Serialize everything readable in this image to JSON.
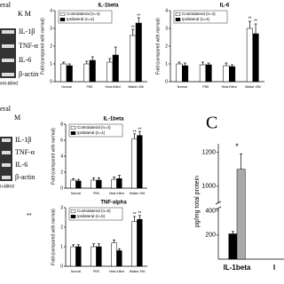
{
  "gels": [
    {
      "header": "eral",
      "lanes": "K M",
      "labels": [
        "IL-1β",
        "TNF-α",
        "IL-6",
        "β-actin"
      ],
      "footer": "ent-killed"
    },
    {
      "header": "eral",
      "lanes": "M",
      "labels": [
        "IL-1β",
        "TNF-α",
        "IL-6",
        "β-actin"
      ],
      "footer": "n-killed",
      "fragment": "**"
    }
  ],
  "chart_data": [
    {
      "type": "bar",
      "title": "IL-1beta",
      "y_label": "Fold (compared with normal)",
      "categories": [
        "Normal",
        "PBS",
        "Heat-Killed",
        "Walker 256"
      ],
      "series": [
        {
          "name": "Contralateral (n=4)",
          "color": "#ffffff",
          "values": [
            1.0,
            1.0,
            1.1,
            2.6
          ],
          "errors": [
            0.1,
            0.15,
            0.2,
            0.35
          ]
        },
        {
          "name": "Ipsilateral (n=4)",
          "color": "#000000",
          "values": [
            0.9,
            1.2,
            1.5,
            3.3
          ],
          "errors": [
            0.1,
            0.2,
            0.45,
            0.3
          ]
        }
      ],
      "ylim": [
        0,
        4
      ],
      "yticks": [
        0,
        1,
        2,
        3,
        4
      ],
      "annotations": [
        {
          "text": "**",
          "x": "Walker 256",
          "series": "Contralateral (n=4)",
          "y": 3.05
        },
        {
          "text": "**",
          "x": "Walker 256",
          "series": "Ipsilateral (n=4)",
          "y": 3.7
        }
      ]
    },
    {
      "type": "bar",
      "title": "IL-6",
      "y_label": "Fold (compared with normal)",
      "categories": [
        "Normal",
        "PBS",
        "Heat-Killed",
        "Walker 256"
      ],
      "series": [
        {
          "name": "Contralateral (n=4)",
          "color": "#ffffff",
          "values": [
            1.0,
            0.95,
            0.9,
            3.0
          ],
          "errors": [
            0.1,
            0.15,
            0.15,
            0.4
          ]
        },
        {
          "name": "Ipsilateral (n=4)",
          "color": "#000000",
          "values": [
            0.9,
            0.95,
            0.85,
            2.7
          ],
          "errors": [
            0.15,
            0.1,
            0.1,
            0.55
          ]
        }
      ],
      "ylim": [
        0,
        4
      ],
      "yticks": [
        0,
        1,
        2,
        3,
        4
      ],
      "annotations": [
        {
          "text": "**",
          "x": "Walker 256",
          "series": "Contralateral (n=4)",
          "y": 3.55
        },
        {
          "text": "**",
          "x": "Walker 256",
          "series": "Ipsilateral (n=4)",
          "y": 3.4
        }
      ]
    },
    {
      "type": "bar",
      "title": "IL-1beta",
      "y_label": "Fold (compared with normal)",
      "categories": [
        "Normal",
        "PBS",
        "Heat-Killed",
        "Walker 256"
      ],
      "series": [
        {
          "name": "Contralateral (n=4)",
          "color": "#ffffff",
          "values": [
            1.0,
            1.0,
            1.1,
            6.2
          ],
          "errors": [
            0.2,
            0.3,
            0.3,
            0.6
          ]
        },
        {
          "name": "Ipsilateral (n=4)",
          "color": "#000000",
          "values": [
            0.9,
            1.0,
            1.2,
            6.6
          ],
          "errors": [
            0.2,
            0.3,
            0.4,
            0.5
          ]
        }
      ],
      "ylim": [
        0,
        8
      ],
      "yticks": [
        0,
        2,
        4,
        6,
        8
      ],
      "annotations": [
        {
          "text": "**",
          "x": "Walker 256",
          "series": "Contralateral (n=4)",
          "y": 7.0
        },
        {
          "text": "**",
          "x": "Walker 256",
          "series": "Ipsilateral (n=4)",
          "y": 7.3
        }
      ]
    },
    {
      "type": "bar",
      "title": "TNF-alpha",
      "y_label": "Fold (compared with normal)",
      "categories": [
        "Normal",
        "PBS",
        "Heat-Killed",
        "Walker 256"
      ],
      "series": [
        {
          "name": "Contralateral (n=5)",
          "color": "#ffffff",
          "values": [
            1.0,
            1.0,
            1.2,
            2.3
          ],
          "errors": [
            0.1,
            0.15,
            0.15,
            0.25
          ]
        },
        {
          "name": "Ipsilateral (n=5)",
          "color": "#000000",
          "values": [
            1.0,
            1.0,
            0.8,
            2.4
          ],
          "errors": [
            0.1,
            0.15,
            0.1,
            0.2
          ]
        }
      ],
      "ylim": [
        0,
        3
      ],
      "yticks": [
        0,
        1,
        2,
        3
      ],
      "annotations": [
        {
          "text": "**",
          "x": "Walker 256",
          "series": "Contralateral (n=5)",
          "y": 2.65
        },
        {
          "text": "**",
          "x": "Walker 256",
          "series": "Ipsilateral (n=5)",
          "y": 2.7
        }
      ]
    },
    {
      "type": "broken-bar",
      "panel_label": "C",
      "y_label": "pg/mg total protein",
      "categories": [
        "IL-1beta",
        "I"
      ],
      "series": [
        {
          "color": "#000000",
          "values": [
            210,
            null
          ],
          "errors": [
            20,
            null
          ]
        },
        {
          "color": "#aaaaaa",
          "values": [
            1100,
            null
          ],
          "errors": [
            90,
            null
          ]
        }
      ],
      "ylim": [
        0,
        1250
      ],
      "break": [
        420,
        900
      ],
      "yticks": [
        200,
        400,
        1000,
        1200
      ],
      "annotations": [
        {
          "text": "*",
          "x": "IL-1beta",
          "y": 1230
        }
      ]
    }
  ]
}
